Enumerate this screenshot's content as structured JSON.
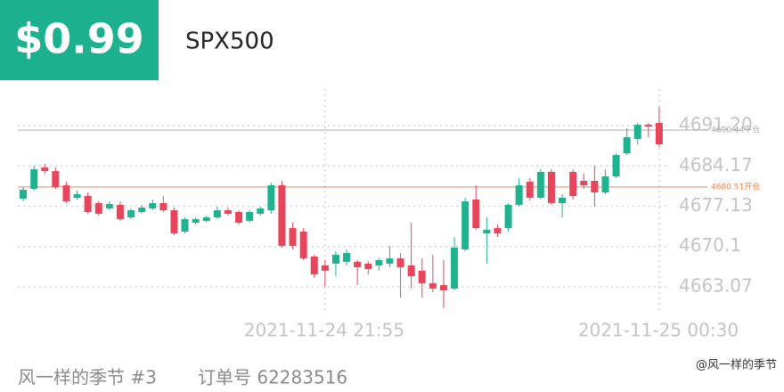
{
  "header": {
    "price": "$0.99",
    "symbol": "SPX500"
  },
  "footer": {
    "account": "风一样的季节 #3",
    "order": "订单号 62283516",
    "watermark": "@风一样的季节"
  },
  "chart_data": {
    "type": "candlestick",
    "categories": [
      null,
      null,
      null,
      null,
      null,
      null,
      null,
      null,
      null,
      null,
      null,
      null,
      null,
      null,
      null,
      null,
      null,
      null,
      null,
      null,
      null,
      null,
      null,
      null,
      null,
      null,
      null,
      null,
      "2021-11-24 21:55",
      null,
      null,
      null,
      null,
      null,
      null,
      null,
      null,
      null,
      null,
      null,
      null,
      null,
      null,
      null,
      null,
      null,
      null,
      null,
      null,
      null,
      null,
      null,
      null,
      null,
      null,
      null,
      null,
      null,
      null,
      "2021-11-25 00:30"
    ],
    "open": [
      4678.46,
      4680.17,
      4683.91,
      4683.28,
      4680.8,
      4678.62,
      4678.93,
      4677.69,
      4676.75,
      4677.37,
      4675.2,
      4676.13,
      4676.75,
      4677.69,
      4676.44,
      4672.71,
      4674.26,
      4674.58,
      4675.2,
      4676.44,
      4676.13,
      4674.58,
      4675.82,
      4676.44,
      4680.8,
      4673.33,
      4672.71,
      4668.36,
      4666.8,
      4667.11,
      4667.42,
      4667.42,
      4667.11,
      4666.8,
      4667.11,
      4668.04,
      4666.8,
      4665.87,
      4663.69,
      4663.38,
      4662.76,
      4669.6,
      4678.31,
      4672.4,
      4673.33,
      4673.33,
      4677.37,
      4681.42,
      4678.62,
      4683.13,
      4677.69,
      4683.13,
      4681.57,
      4681.57,
      4679.55,
      4682.35,
      4686.39,
      4688.88,
      4691.37,
      4691.68
    ],
    "high": [
      4680.48,
      4684.22,
      4684.53,
      4683.91,
      4681.42,
      4679.86,
      4679.55,
      4678.0,
      4678.0,
      4678.0,
      4676.75,
      4677.37,
      4678.31,
      4678.93,
      4676.91,
      4675.2,
      4675.2,
      4675.51,
      4677.06,
      4676.91,
      4676.44,
      4676.44,
      4677.06,
      4681.26,
      4681.57,
      4674.26,
      4673.33,
      4668.67,
      4667.73,
      4669.29,
      4669.6,
      4667.73,
      4667.58,
      4668.04,
      4670.22,
      4668.98,
      4674.26,
      4668.04,
      4668.67,
      4667.73,
      4671.78,
      4678.62,
      4680.8,
      4675.2,
      4673.95,
      4677.69,
      4682.04,
      4682.04,
      4683.59,
      4683.59,
      4679.24,
      4683.59,
      4682.82,
      4684.22,
      4683.59,
      4686.39,
      4690.75,
      4691.68,
      4691.68,
      4694.48
    ],
    "low": [
      4678.0,
      4679.86,
      4682.82,
      4680.17,
      4677.69,
      4678.31,
      4675.82,
      4675.51,
      4676.44,
      4674.58,
      4674.89,
      4675.82,
      4676.44,
      4676.13,
      4672.09,
      4672.4,
      4673.95,
      4674.26,
      4674.89,
      4675.51,
      4673.95,
      4674.26,
      4675.51,
      4675.82,
      4669.91,
      4669.6,
      4667.73,
      4664.62,
      4663.07,
      4664.93,
      4666.8,
      4663.38,
      4665.25,
      4665.87,
      4666.49,
      4661.2,
      4662.76,
      4661.2,
      4662.14,
      4659.34,
      4662.45,
      4669.29,
      4673.02,
      4667.11,
      4671.78,
      4672.71,
      4677.06,
      4678.15,
      4678.31,
      4677.37,
      4675.2,
      4678.31,
      4680.17,
      4677.06,
      4679.24,
      4682.04,
      4686.08,
      4687.95,
      4689.19,
      4687.48
    ],
    "close": [
      4680.02,
      4683.59,
      4683.28,
      4680.48,
      4678.0,
      4679.24,
      4676.13,
      4675.82,
      4677.53,
      4674.89,
      4676.44,
      4676.91,
      4677.69,
      4676.44,
      4672.4,
      4674.89,
      4674.89,
      4675.2,
      4676.44,
      4675.82,
      4674.26,
      4676.13,
      4676.75,
      4680.8,
      4670.22,
      4670.22,
      4668.04,
      4665.25,
      4665.87,
      4668.67,
      4668.98,
      4666.49,
      4666.18,
      4667.73,
      4668.04,
      4666.49,
      4664.93,
      4663.69,
      4662.76,
      4662.45,
      4669.91,
      4678.0,
      4673.33,
      4673.02,
      4672.4,
      4677.37,
      4680.8,
      4678.62,
      4683.13,
      4677.69,
      4678.62,
      4678.93,
      4680.8,
      4679.55,
      4682.35,
      4686.08,
      4689.19,
      4691.37,
      4691.06,
      4687.95
    ],
    "up_color": "#1fb28e",
    "down_color": "#e8455b",
    "ylim": [
      4658.7,
      4697.6
    ],
    "yticks": [
      {
        "value": 4663.07,
        "label": "4663.07"
      },
      4670.1,
      4677.13,
      4684.17,
      {
        "value": 4691.2,
        "label": "4691.20"
      }
    ],
    "yticks_fix": null,
    "reference_lines": [
      {
        "value": 4690.44,
        "label": "4690.44平仓",
        "color": "#aaaaaa"
      },
      {
        "value": 4680.51,
        "label": "4680.51开仓",
        "color": "#f0834f"
      }
    ],
    "grid": true
  }
}
